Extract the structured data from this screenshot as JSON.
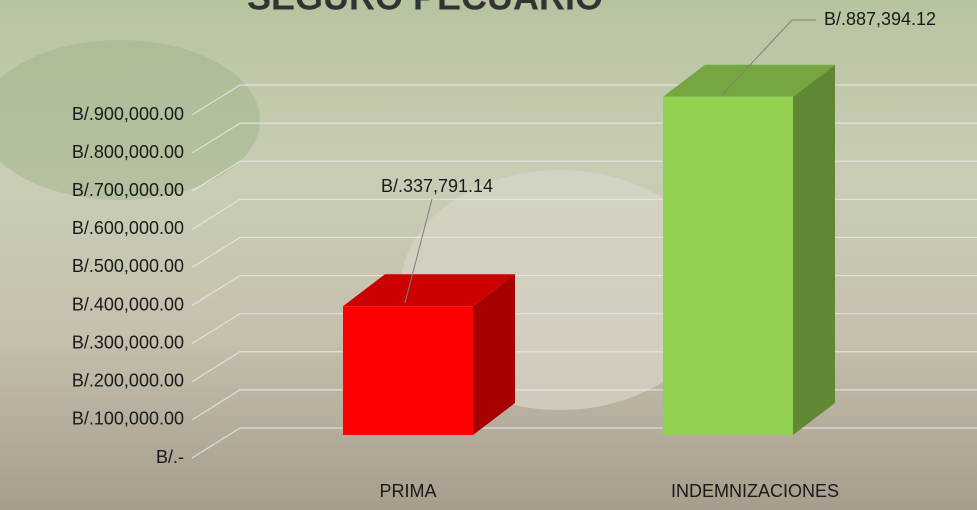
{
  "chart_data": {
    "type": "bar3d",
    "title": "SEGURO PECUARIO",
    "categories": [
      "PRIMA",
      "INDEMNIZACIONES"
    ],
    "values": [
      337791.14,
      887394.12
    ],
    "value_labels": [
      "B/.337,791.14",
      "B/.887,394.12"
    ],
    "colors": [
      "#ff0000",
      "#92d050"
    ],
    "ylim": [
      0,
      900000
    ],
    "yticks": [
      {
        "value": 0,
        "label": "B/.-"
      },
      {
        "value": 100000,
        "label": "B/.100,000.00"
      },
      {
        "value": 200000,
        "label": "B/.200,000.00"
      },
      {
        "value": 300000,
        "label": "B/.300,000.00"
      },
      {
        "value": 400000,
        "label": "B/.400,000.00"
      },
      {
        "value": 500000,
        "label": "B/.500,000.00"
      },
      {
        "value": 600000,
        "label": "B/.600,000.00"
      },
      {
        "value": 700000,
        "label": "B/.700,000.00"
      },
      {
        "value": 800000,
        "label": "B/.800,000.00"
      },
      {
        "value": 900000,
        "label": "B/.900,000.00"
      }
    ],
    "grid": true
  }
}
